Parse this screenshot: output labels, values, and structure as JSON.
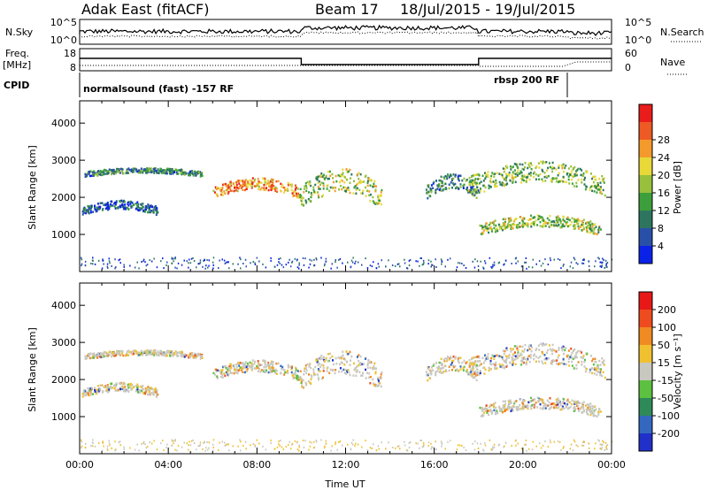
{
  "header": {
    "title": "Adak East (fitACF)",
    "beam": "Beam 17",
    "date_range": "18/Jul/2015 - 19/Jul/2015"
  },
  "strips": {
    "nsky_label": "N.Sky",
    "nsky_ticks": [
      "10^5",
      "10^0"
    ],
    "nsearch_label": "N.Search",
    "nsearch_ticks": [
      "10^5",
      "10^0"
    ],
    "freq_label_1": "Freq.",
    "freq_label_2": "[MHz]",
    "freq_ticks": [
      "18",
      "8"
    ],
    "nave_label": "Nave",
    "nave_ticks": [
      "60",
      "0"
    ],
    "cpid_label": "CPID",
    "cpid_left": "normalsound (fast) -157 RF",
    "cpid_right": "rbsp 200 RF"
  },
  "chart_data": [
    {
      "type": "heatmap",
      "title": "",
      "parameter": "Power [dB]",
      "xlabel": "",
      "ylabel": "Slant Range [km]",
      "x_range_hours": [
        0,
        24
      ],
      "ylim": [
        0,
        4600
      ],
      "y_ticks": [
        1000,
        2000,
        3000,
        4000
      ],
      "colorbar_label": "Power [dB]",
      "colorbar_ticks": [
        "4",
        "8",
        "12",
        "16",
        "20",
        "24",
        "28"
      ],
      "colorbar_colors": [
        "#0a22e8",
        "#2850a8",
        "#2e7560",
        "#3c9f3c",
        "#98c03c",
        "#e8d838",
        "#f49a2c",
        "#ee5a24",
        "#ea1d1d"
      ],
      "echo_bands": [
        {
          "t": [
            0.2,
            5.5
          ],
          "r": [
            2500,
            2800
          ],
          "level": 0.3
        },
        {
          "t": [
            0.1,
            3.5
          ],
          "r": [
            1400,
            1900
          ],
          "level": 0.2
        },
        {
          "t": [
            6.0,
            9.9
          ],
          "r": [
            1800,
            2500
          ],
          "level": 0.75
        },
        {
          "t": [
            9.9,
            13.6
          ],
          "r": [
            1300,
            2700
          ],
          "level": 0.5
        },
        {
          "t": [
            15.6,
            18.0
          ],
          "r": [
            1700,
            2600
          ],
          "level": 0.3
        },
        {
          "t": [
            17.5,
            23.7
          ],
          "r": [
            1700,
            2900
          ],
          "level": 0.45
        },
        {
          "t": [
            18.0,
            23.5
          ],
          "r": [
            800,
            1500
          ],
          "level": 0.5
        }
      ]
    },
    {
      "type": "heatmap",
      "title": "",
      "parameter": "Velocity [m s^-1]",
      "xlabel": "Time UT",
      "ylabel": "Slant Range [km]",
      "x_range_hours": [
        0,
        24
      ],
      "ylim": [
        0,
        4600
      ],
      "y_ticks": [
        1000,
        2000,
        3000,
        4000
      ],
      "colorbar_label": "Velocity [m s⁻¹]",
      "colorbar_ticks": [
        "200",
        "100",
        "50",
        "15",
        "-15",
        "-50",
        "-100",
        "-200"
      ],
      "colorbar_colors": [
        "#2030c8",
        "#3468c0",
        "#2e8a58",
        "#5cc040",
        "#c8c8c0",
        "#f0c030",
        "#f08a22",
        "#ee4c1e",
        "#e81818"
      ],
      "x_ticks": [
        "00:00",
        "04:00",
        "08:00",
        "12:00",
        "16:00",
        "20:00",
        "00:00"
      ]
    }
  ]
}
